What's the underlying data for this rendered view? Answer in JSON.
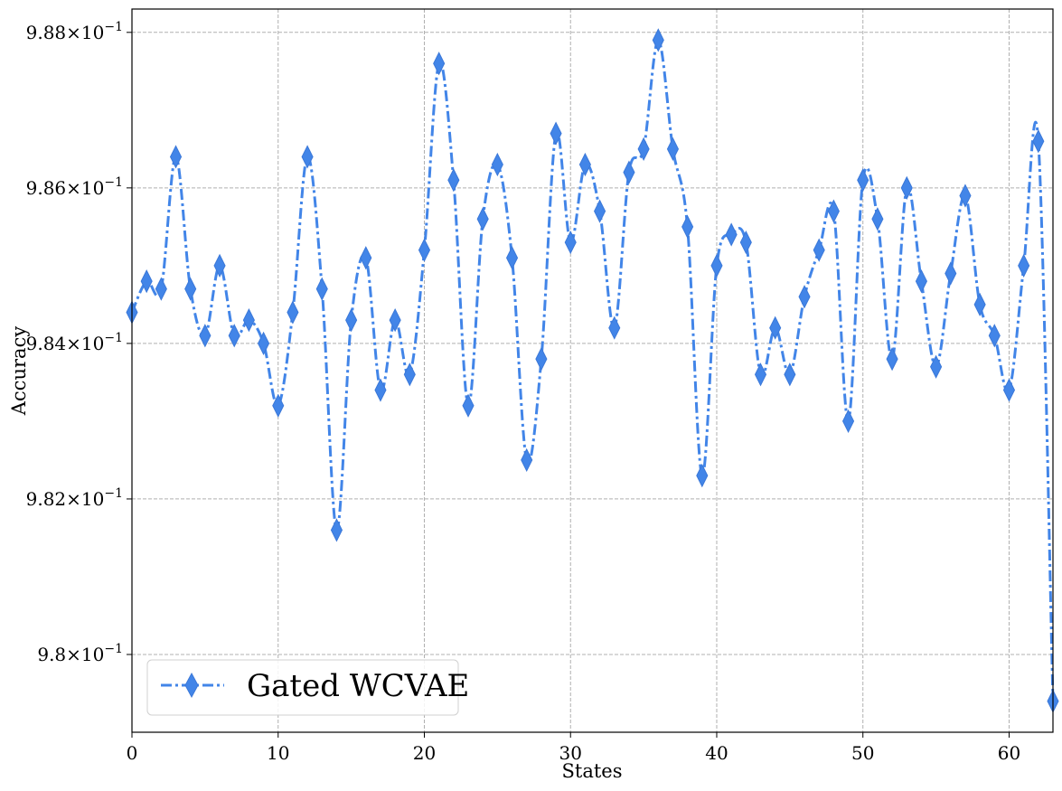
{
  "chart_data": {
    "type": "line",
    "xlabel": "States",
    "ylabel": "Accuracy",
    "xlim": [
      0,
      63
    ],
    "ylim": [
      0.979,
      0.9883
    ],
    "grid": true,
    "legend_position": "lower-left",
    "x_ticks": [
      0,
      10,
      20,
      30,
      40,
      50,
      60
    ],
    "x_tick_labels": [
      "0",
      "10",
      "20",
      "30",
      "40",
      "50",
      "60"
    ],
    "y_ticks": [
      0.98,
      0.982,
      0.984,
      0.986,
      0.988
    ],
    "y_tick_labels": [
      {
        "mantissa": "9.8",
        "exponent": "−1"
      },
      {
        "mantissa": "9.82",
        "exponent": "−1"
      },
      {
        "mantissa": "9.84",
        "exponent": "−1"
      },
      {
        "mantissa": "9.86",
        "exponent": "−1"
      },
      {
        "mantissa": "9.88",
        "exponent": "−1"
      }
    ],
    "series": [
      {
        "name": "Gated WCVAE",
        "color": "#4285e8",
        "marker": "thin_diamond",
        "linestyle": "dash-dot",
        "x": [
          0,
          1,
          2,
          3,
          4,
          5,
          6,
          7,
          8,
          9,
          10,
          11,
          12,
          13,
          14,
          15,
          16,
          17,
          18,
          19,
          20,
          21,
          22,
          23,
          24,
          25,
          26,
          27,
          28,
          29,
          30,
          31,
          32,
          33,
          34,
          35,
          36,
          37,
          38,
          39,
          40,
          41,
          42,
          43,
          44,
          45,
          46,
          47,
          48,
          49,
          50,
          51,
          52,
          53,
          54,
          55,
          56,
          57,
          58,
          59,
          60,
          61,
          62,
          63
        ],
        "y": [
          0.9844,
          0.9848,
          0.9847,
          0.9864,
          0.9847,
          0.9841,
          0.985,
          0.9841,
          0.9843,
          0.984,
          0.9832,
          0.9844,
          0.9864,
          0.9847,
          0.9816,
          0.9843,
          0.9851,
          0.9834,
          0.9843,
          0.9836,
          0.9852,
          0.9876,
          0.9861,
          0.9832,
          0.9856,
          0.9863,
          0.9851,
          0.9825,
          0.9838,
          0.9867,
          0.9853,
          0.9863,
          0.9857,
          0.9842,
          0.9862,
          0.9865,
          0.9879,
          0.9865,
          0.9855,
          0.9823,
          0.985,
          0.9854,
          0.9853,
          0.9836,
          0.9842,
          0.9836,
          0.9846,
          0.9852,
          0.9857,
          0.983,
          0.9861,
          0.9856,
          0.9838,
          0.986,
          0.9848,
          0.9837,
          0.9849,
          0.9859,
          0.9845,
          0.9841,
          0.9834,
          0.985,
          0.9866,
          0.9794
        ]
      }
    ]
  }
}
